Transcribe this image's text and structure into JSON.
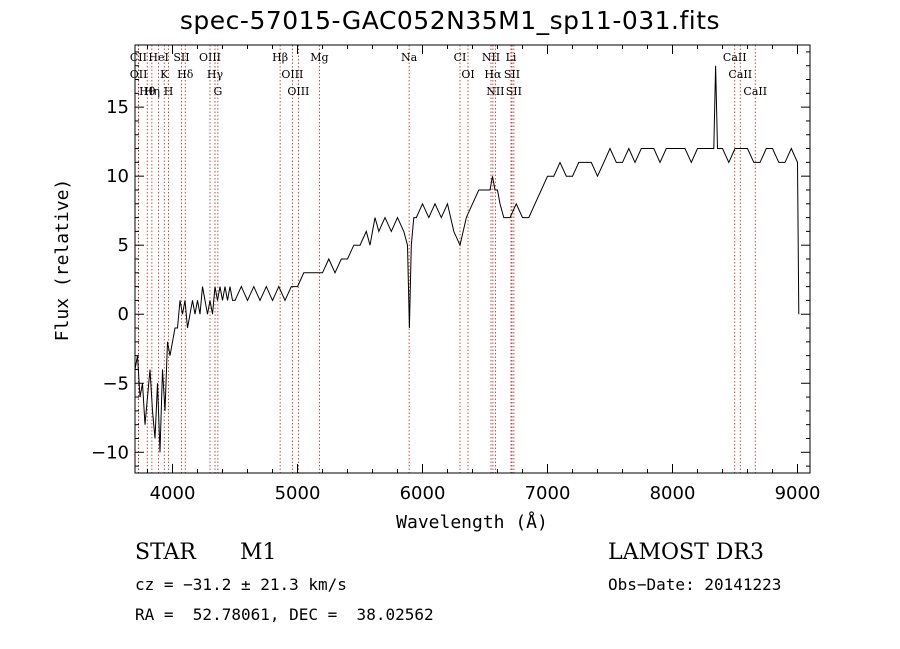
{
  "header": {
    "title": "spec-57015-GAC052N35M1_sp11-031.fits"
  },
  "chart_data": {
    "type": "line",
    "title": "spec-57015-GAC052N35M1_sp11-031.fits",
    "xlabel": "Wavelength (Å)",
    "ylabel": "Flux (relative)",
    "xlim": [
      3700,
      9100
    ],
    "ylim": [
      -11.5,
      19.5
    ],
    "x_ticks": [
      4000,
      5000,
      6000,
      7000,
      8000,
      9000
    ],
    "x_tick_labels": [
      "4000",
      "5000",
      "6000",
      "7000",
      "8000",
      "9000"
    ],
    "y_ticks": [
      -10,
      -5,
      0,
      5,
      10,
      15
    ],
    "y_tick_labels": [
      "−10",
      "−5",
      "0",
      "5",
      "10",
      "15"
    ],
    "grid": false,
    "series": [
      {
        "name": "flux",
        "x": [
          3700,
          3720,
          3740,
          3760,
          3780,
          3800,
          3820,
          3840,
          3860,
          3880,
          3900,
          3920,
          3940,
          3960,
          3980,
          4000,
          4020,
          4040,
          4060,
          4080,
          4100,
          4120,
          4140,
          4160,
          4180,
          4200,
          4220,
          4240,
          4260,
          4280,
          4300,
          4320,
          4340,
          4360,
          4380,
          4400,
          4420,
          4440,
          4460,
          4480,
          4500,
          4550,
          4600,
          4650,
          4700,
          4750,
          4800,
          4850,
          4900,
          4950,
          5000,
          5050,
          5100,
          5150,
          5200,
          5250,
          5300,
          5350,
          5400,
          5450,
          5500,
          5550,
          5580,
          5600,
          5620,
          5650,
          5700,
          5750,
          5800,
          5850,
          5880,
          5895,
          5910,
          5930,
          5950,
          6000,
          6050,
          6100,
          6150,
          6200,
          6250,
          6300,
          6350,
          6400,
          6450,
          6500,
          6540,
          6560,
          6580,
          6600,
          6620,
          6650,
          6700,
          6750,
          6800,
          6850,
          6900,
          6950,
          7000,
          7050,
          7100,
          7150,
          7200,
          7250,
          7300,
          7350,
          7400,
          7450,
          7500,
          7550,
          7600,
          7650,
          7700,
          7750,
          7800,
          7850,
          7900,
          7950,
          8000,
          8050,
          8100,
          8150,
          8200,
          8250,
          8300,
          8330,
          8345,
          8360,
          8400,
          8450,
          8500,
          8540,
          8560,
          8600,
          8650,
          8700,
          8750,
          8800,
          8850,
          8900,
          8950,
          9000,
          9010
        ],
        "y": [
          -4,
          -3,
          -6,
          -5,
          -8,
          -6,
          -4,
          -7,
          -9,
          -5,
          -10,
          -4,
          -7,
          -2,
          -3,
          -2,
          -1,
          -1,
          1,
          0,
          1,
          -1,
          0,
          1,
          0,
          1,
          0,
          2,
          1,
          0,
          1,
          0,
          2,
          1,
          2,
          1,
          2,
          1,
          2,
          1,
          1,
          2,
          1,
          2,
          1,
          2,
          1,
          2,
          1,
          2,
          2,
          3,
          3,
          3,
          3,
          4,
          3,
          4,
          4,
          5,
          5,
          6,
          5,
          6,
          7,
          6,
          7,
          6,
          7,
          6,
          5,
          -1,
          5,
          7,
          7,
          8,
          7,
          8,
          7,
          8,
          6,
          5,
          7,
          8,
          9,
          9,
          9,
          10,
          9,
          9,
          8,
          7,
          7,
          8,
          7,
          7,
          8,
          9,
          10,
          10,
          11,
          10,
          10,
          11,
          11,
          11,
          10,
          11,
          12,
          11,
          11,
          12,
          11,
          12,
          12,
          12,
          11,
          12,
          12,
          12,
          12,
          11,
          12,
          12,
          12,
          12,
          18,
          12,
          12,
          11,
          12,
          12,
          12,
          12,
          11,
          11,
          12,
          12,
          11,
          11,
          12,
          11,
          0
        ]
      }
    ],
    "annotations": [
      {
        "label": "CII",
        "wavelength": 3727
      },
      {
        "label": "OII",
        "wavelength": 3729
      },
      {
        "label": "Hθ",
        "wavelength": 3798
      },
      {
        "label": "Hη",
        "wavelength": 3835
      },
      {
        "label": "HeI",
        "wavelength": 3889
      },
      {
        "label": "K",
        "wavelength": 3934
      },
      {
        "label": "H",
        "wavelength": 3968
      },
      {
        "label": "SII",
        "wavelength": 4072
      },
      {
        "label": "Hδ",
        "wavelength": 4102
      },
      {
        "label": "OIII",
        "wavelength": 4300
      },
      {
        "label": "Hγ",
        "wavelength": 4340
      },
      {
        "label": "G",
        "wavelength": 4363
      },
      {
        "label": "Hβ",
        "wavelength": 4861
      },
      {
        "label": "OIII",
        "wavelength": 4959
      },
      {
        "label": "OIII",
        "wavelength": 5007
      },
      {
        "label": "Mg",
        "wavelength": 5175
      },
      {
        "label": "Na",
        "wavelength": 5893
      },
      {
        "label": "CI",
        "wavelength": 6300
      },
      {
        "label": "OI",
        "wavelength": 6364
      },
      {
        "label": "NII",
        "wavelength": 6548
      },
      {
        "label": "Hα",
        "wavelength": 6563
      },
      {
        "label": "NII",
        "wavelength": 6583
      },
      {
        "label": "SII",
        "wavelength": 6716
      },
      {
        "label": "Li",
        "wavelength": 6708
      },
      {
        "label": "SII",
        "wavelength": 6731
      },
      {
        "label": "CaII",
        "wavelength": 8498
      },
      {
        "label": "CaII",
        "wavelength": 8542
      },
      {
        "label": "CaII",
        "wavelength": 8662
      }
    ]
  },
  "info": {
    "object_type": "STAR",
    "subclass": "M1",
    "survey": "LAMOST DR3",
    "cz": "cz = −31.2 ± 21.3 km/s",
    "obs_date": "Obs−Date: 20141223",
    "radec": "RA =  52.78061, DEC =  38.02562"
  }
}
